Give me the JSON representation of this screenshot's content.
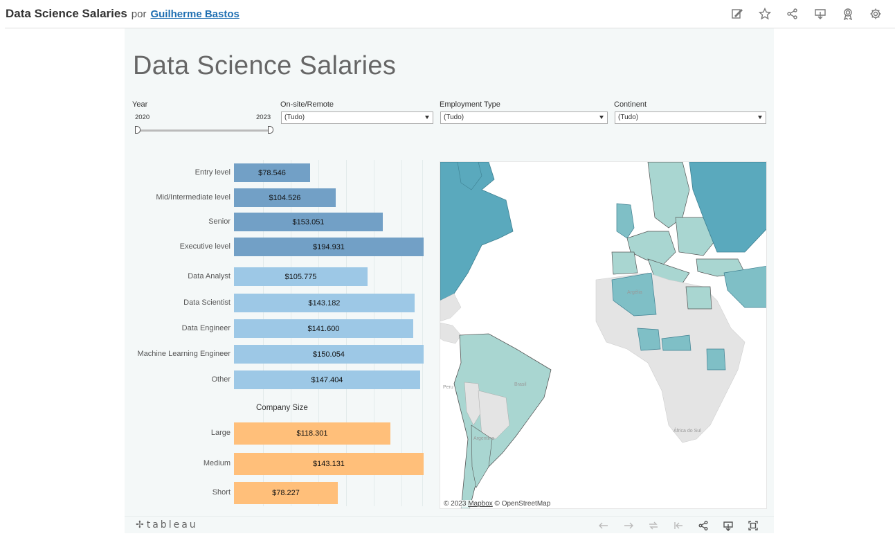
{
  "header": {
    "title": "Data Science Salaries",
    "by": "por",
    "author": "Guilherme Bastos",
    "actions": [
      "edit-icon",
      "star-icon",
      "share-icon",
      "download-icon",
      "badge-icon",
      "settings-icon"
    ]
  },
  "dashboard": {
    "title": "Data Science Salaries",
    "filters": {
      "year": {
        "label": "Year",
        "min": "2020",
        "max": "2023"
      },
      "onsite": {
        "label": "On-site/Remote",
        "value": "(Tudo)"
      },
      "employment": {
        "label": "Employment Type",
        "value": "(Tudo)"
      },
      "continent": {
        "label": "Continent",
        "value": "(Tudo)"
      }
    },
    "company_size_title": "Company Size"
  },
  "chart_data": [
    {
      "type": "bar",
      "categories": [
        "Entry level",
        "Mid/Intermediate level",
        "Senior",
        "Executive level"
      ],
      "values": [
        78546,
        104526,
        153051,
        194931
      ],
      "labels": [
        "$78.546",
        "$104.526",
        "$153.051",
        "$194.931"
      ],
      "color": "#72a0c6"
    },
    {
      "type": "bar",
      "categories": [
        "Data Analyst",
        "Data Scientist",
        "Data Engineer",
        "Machine Learning Engineer",
        "Other"
      ],
      "values": [
        105775,
        143182,
        141600,
        150054,
        147404
      ],
      "labels": [
        "$105.775",
        "$143.182",
        "$141.600",
        "$150.054",
        "$147.404"
      ],
      "color": "#9dc8e6"
    },
    {
      "type": "bar",
      "title": "Company Size",
      "categories": [
        "Large",
        "Medium",
        "Short"
      ],
      "values": [
        118301,
        143131,
        78227
      ],
      "labels": [
        "$118.301",
        "$143.131",
        "$78.227"
      ],
      "color": "#ffbf7a"
    }
  ],
  "map": {
    "attribution_prefix": "© 2023",
    "attribution_link": "Mapbox",
    "attribution_suffix": "© OpenStreetMap",
    "places": [
      "Brasil",
      "Peru",
      "Argentina",
      "África do Sul",
      "Argélia"
    ],
    "colors": {
      "ocean": "#ffffff",
      "land": "#e4e4e4",
      "low": "#a9d6d1",
      "mid": "#7fbfc6",
      "high": "#5aa9bd"
    }
  },
  "toolbar": {
    "logo": "tableau",
    "icons": [
      "undo-icon",
      "redo-icon",
      "revert-icon",
      "reset-icon",
      "share-icon",
      "download-icon",
      "fullscreen-icon"
    ]
  }
}
